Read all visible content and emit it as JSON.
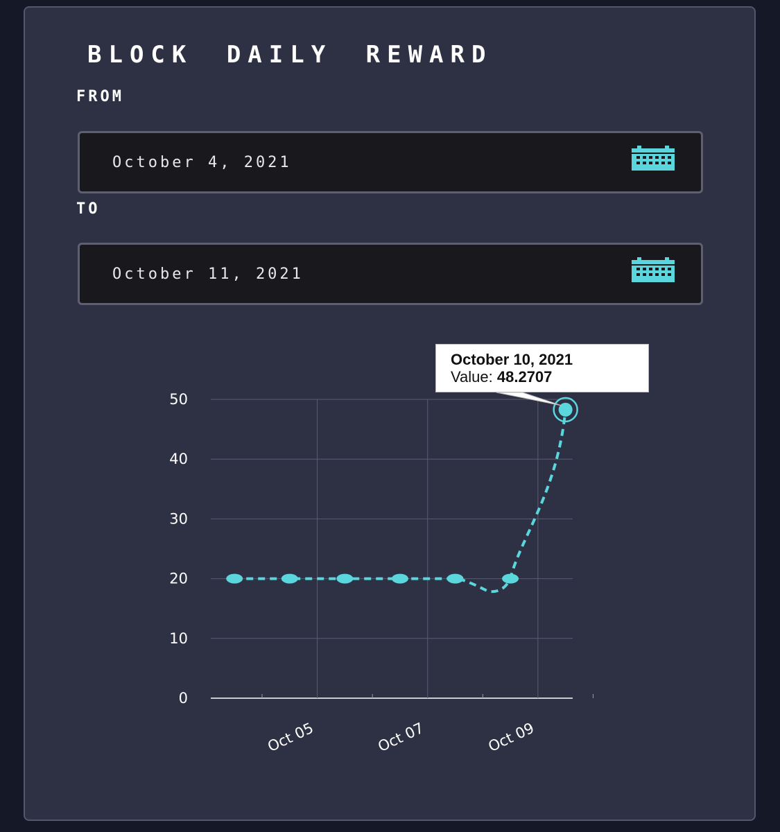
{
  "page": {
    "title": "Block Daily Reward"
  },
  "from": {
    "label": "From",
    "value": "October 4, 2021",
    "icon": "calendar-icon"
  },
  "to": {
    "label": "To",
    "value": "October 11, 2021",
    "icon": "calendar-icon"
  },
  "colors": {
    "accent": "#5ad6dc",
    "panel": "#2e3044",
    "background": "#151826",
    "field": "#19181d",
    "grid": "#5a5c72"
  },
  "tooltip": {
    "date": "October 10, 2021",
    "value_label": "Value:",
    "value": "48.2707"
  },
  "chart_data": {
    "type": "line",
    "title": "",
    "xlabel": "",
    "ylabel": "",
    "x_tick_labels": [
      "Oct 05",
      "Oct 07",
      "Oct 09"
    ],
    "y_tick_labels": [
      "0",
      "10",
      "20",
      "30",
      "40",
      "50"
    ],
    "ylim": [
      0,
      50
    ],
    "grid": true,
    "line_style": "dashed",
    "series": [
      {
        "x": [
          "2021-10-04",
          "2021-10-05",
          "2021-10-06",
          "2021-10-07",
          "2021-10-08",
          "2021-10-09",
          "2021-10-10"
        ],
        "values": [
          20,
          20,
          20,
          20,
          20,
          20,
          48.2707
        ]
      }
    ],
    "highlighted_point": "2021-10-10"
  }
}
